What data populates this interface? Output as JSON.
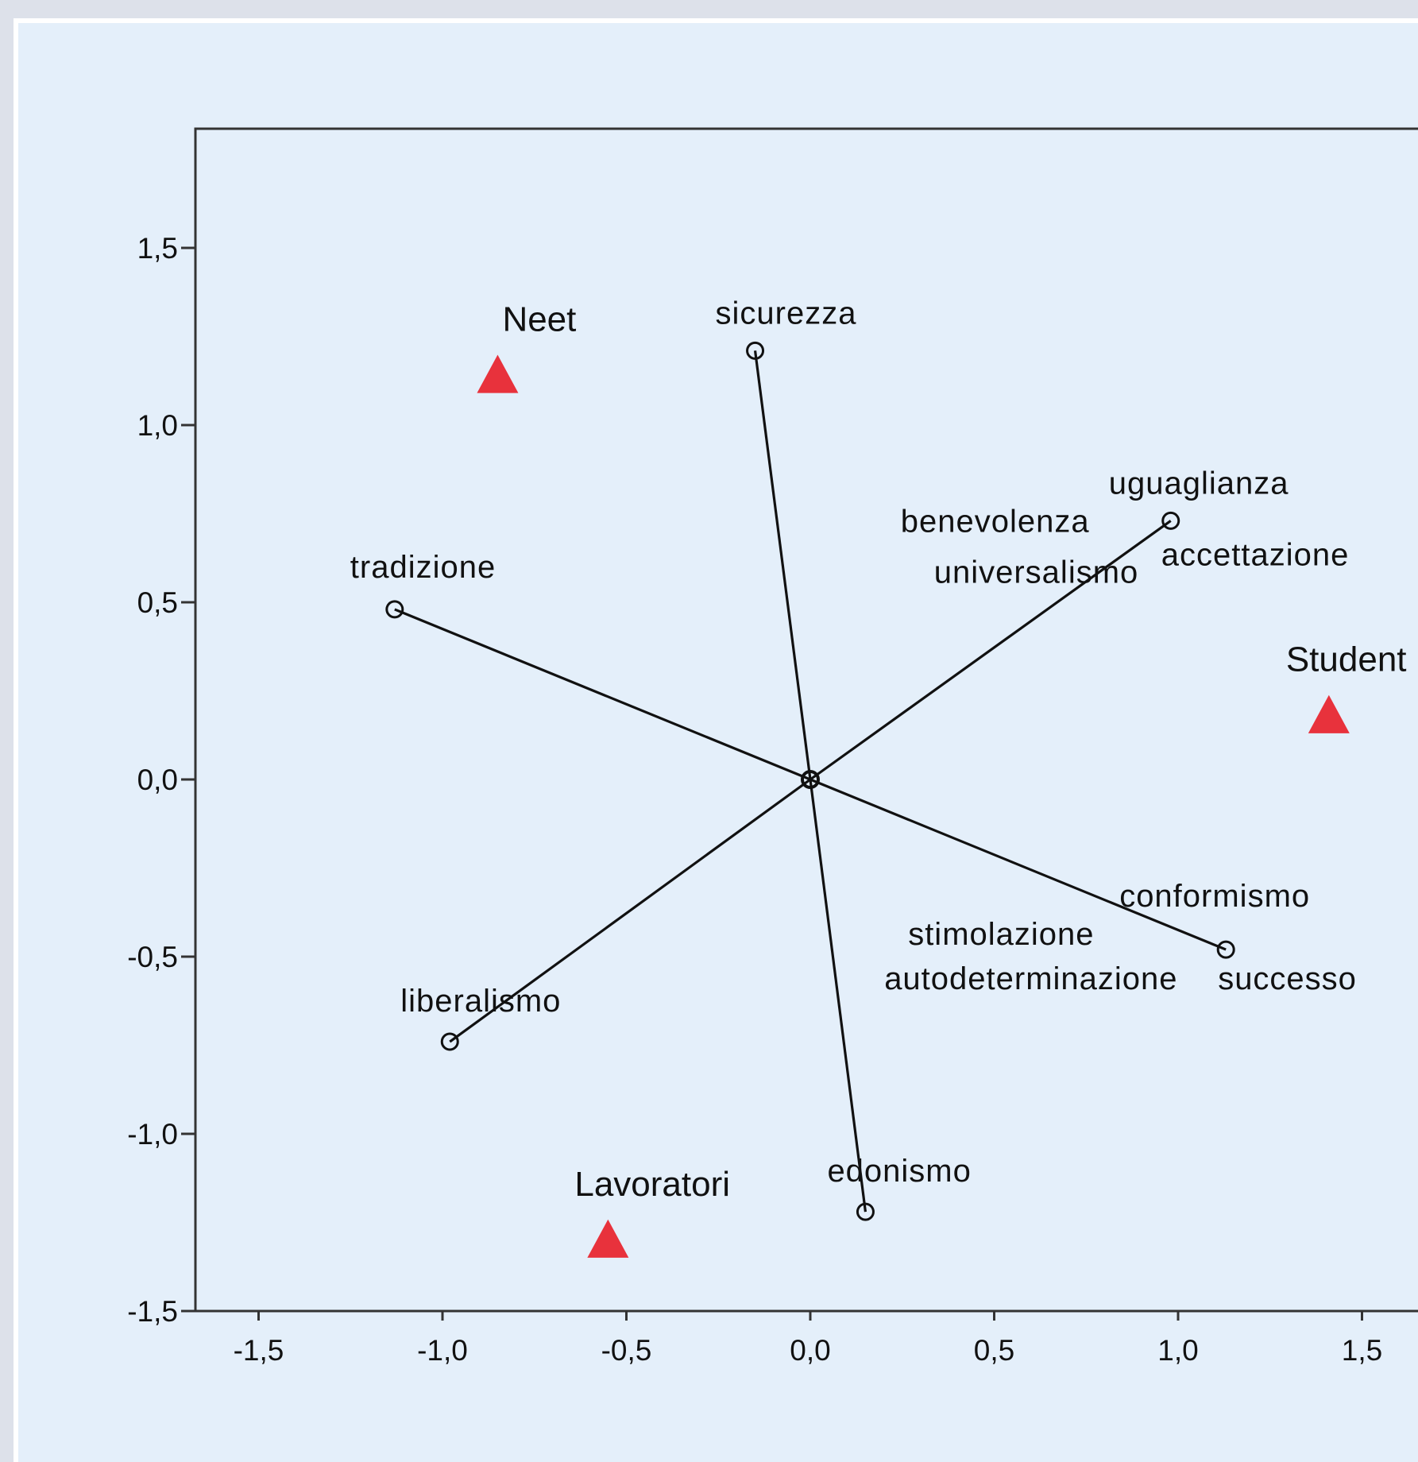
{
  "colors": {
    "outer_background": "#dde1ea",
    "panel_background": "#e4effa",
    "plot_background": "#e4effa",
    "vector_line": "#111111",
    "group_marker": "#e8323c"
  },
  "chart_data": {
    "type": "scatter",
    "title": "",
    "xlabel": "",
    "ylabel": "",
    "xlim": [
      -1.68,
      1.68
    ],
    "ylim": [
      -1.5,
      1.84
    ],
    "x_ticks": [
      -1.5,
      -1.0,
      -0.5,
      0.0,
      0.5,
      1.0,
      1.5
    ],
    "x_tick_labels": [
      "-1,5",
      "-1,0",
      "-0,5",
      "0,0",
      "0,5",
      "1,0",
      "1,5"
    ],
    "y_ticks": [
      -1.5,
      -1.0,
      -0.5,
      0.0,
      0.5,
      1.0,
      1.5
    ],
    "y_tick_labels": [
      "-1,5",
      "-1,0",
      "-0,5",
      "0,0",
      "0,5",
      "1,0",
      "1,5"
    ],
    "grid": false,
    "legend": "none",
    "variable_points": [
      {
        "x": -0.15,
        "y": 1.21,
        "labels": [
          "sicurezza"
        ]
      },
      {
        "x": 0.98,
        "y": 0.73,
        "labels": [
          "uguaglianza",
          "benevolenza",
          "universalismo",
          "accettazione"
        ]
      },
      {
        "x": -1.13,
        "y": 0.48,
        "labels": [
          "tradizione"
        ]
      },
      {
        "x": 1.13,
        "y": -0.48,
        "labels": [
          "conformismo",
          "stimolazione",
          "autodeterminazione",
          "successo"
        ]
      },
      {
        "x": -0.98,
        "y": -0.74,
        "labels": [
          "liberalismo"
        ]
      },
      {
        "x": 0.15,
        "y": -1.22,
        "labels": [
          "edonismo"
        ]
      }
    ],
    "group_points": [
      {
        "x": -0.85,
        "y": 1.14,
        "label": "Neet"
      },
      {
        "x": 1.41,
        "y": 0.18,
        "label": "Student"
      },
      {
        "x": -0.55,
        "y": -1.3,
        "label": "Lavoratori"
      }
    ]
  }
}
